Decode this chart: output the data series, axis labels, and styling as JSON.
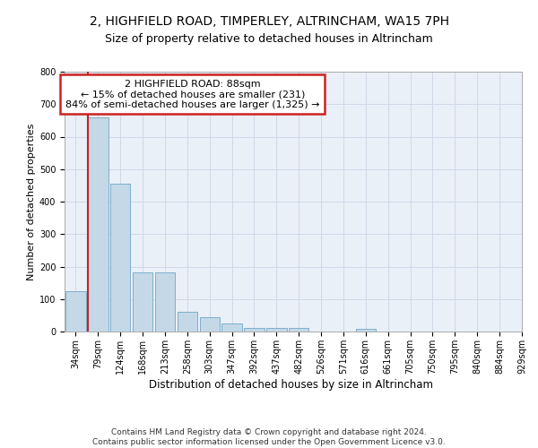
{
  "title1": "2, HIGHFIELD ROAD, TIMPERLEY, ALTRINCHAM, WA15 7PH",
  "title2": "Size of property relative to detached houses in Altrincham",
  "xlabel": "Distribution of detached houses by size in Altrincham",
  "ylabel": "Number of detached properties",
  "bin_labels": [
    "34sqm",
    "79sqm",
    "124sqm",
    "168sqm",
    "213sqm",
    "258sqm",
    "303sqm",
    "347sqm",
    "392sqm",
    "437sqm",
    "482sqm",
    "526sqm",
    "571sqm",
    "616sqm",
    "661sqm",
    "705sqm",
    "750sqm",
    "795sqm",
    "840sqm",
    "884sqm",
    "929sqm"
  ],
  "bar_values": [
    125,
    660,
    455,
    183,
    183,
    60,
    43,
    25,
    12,
    12,
    10,
    0,
    0,
    8,
    0,
    0,
    0,
    0,
    0,
    0
  ],
  "bar_color": "#c5d8e8",
  "bar_edge_color": "#5a9abf",
  "highlight_bar_index": 1,
  "highlight_color": "#cc2222",
  "annotation_box_text": "2 HIGHFIELD ROAD: 88sqm\n← 15% of detached houses are smaller (231)\n84% of semi-detached houses are larger (1,325) →",
  "annotation_box_color": "#cc2222",
  "ylim": [
    0,
    800
  ],
  "yticks": [
    0,
    100,
    200,
    300,
    400,
    500,
    600,
    700,
    800
  ],
  "grid_color": "#d0d8e8",
  "background_color": "#eaf0f8",
  "footer_text": "Contains HM Land Registry data © Crown copyright and database right 2024.\nContains public sector information licensed under the Open Government Licence v3.0.",
  "title1_fontsize": 10,
  "title2_fontsize": 9,
  "annotation_fontsize": 8,
  "tick_fontsize": 7,
  "ylabel_fontsize": 8,
  "xlabel_fontsize": 8.5,
  "footer_fontsize": 6.5
}
